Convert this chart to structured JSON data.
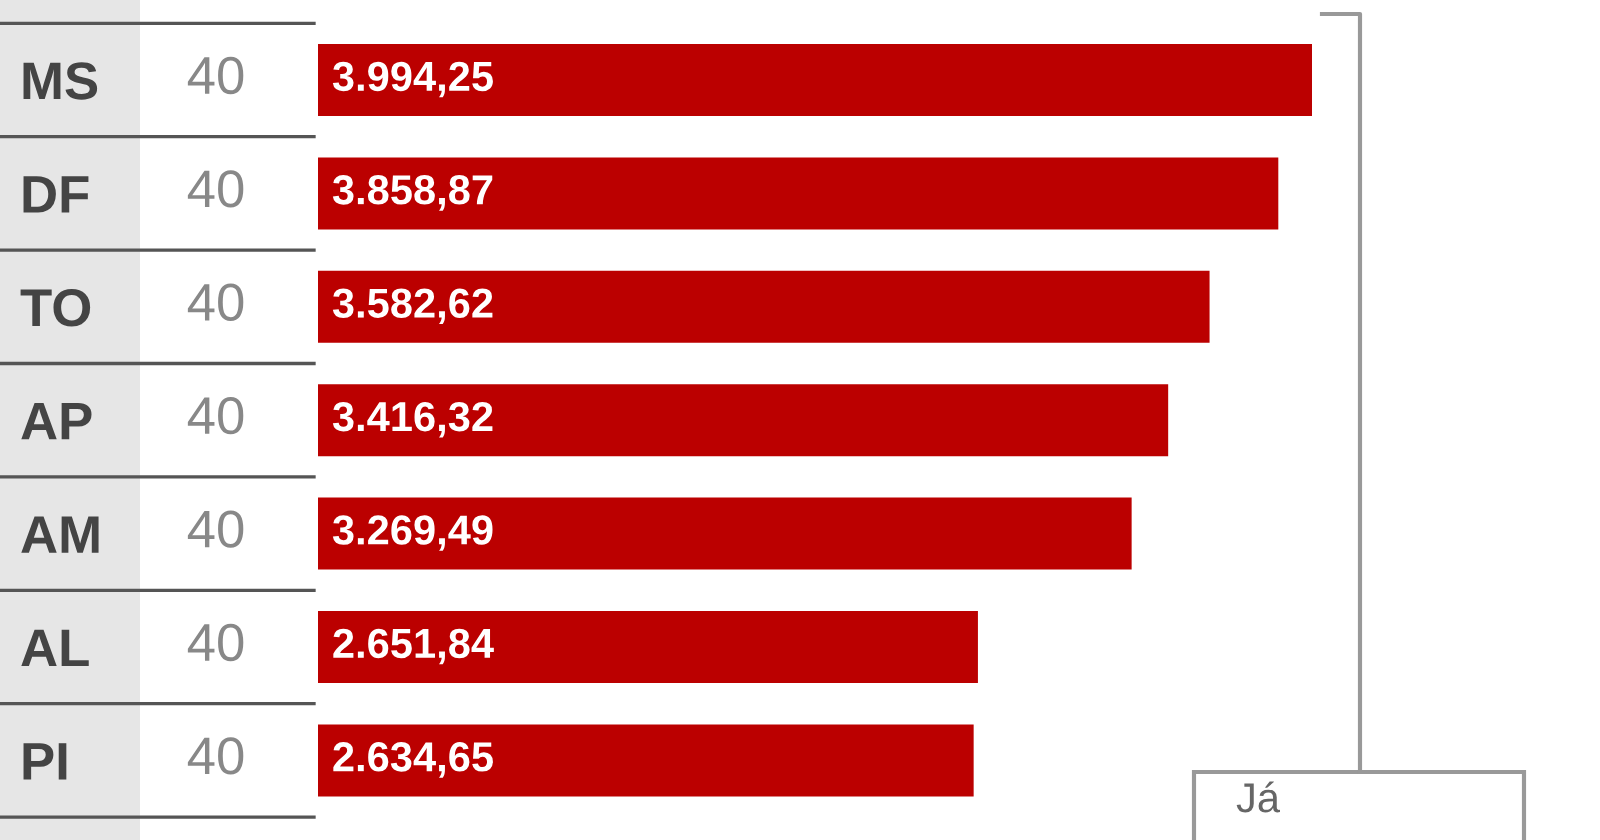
{
  "chart_data": {
    "type": "bar",
    "orientation": "horizontal",
    "categories": [
      "MS",
      "DF",
      "TO",
      "AP",
      "AM",
      "AL",
      "PI"
    ],
    "values": [
      3994.25,
      3858.87,
      3582.62,
      3416.32,
      3269.49,
      2651.84,
      2634.65
    ],
    "value_labels": [
      "3.994,25",
      "3.858,87",
      "3.582,62",
      "3.416,32",
      "3.269,49",
      "2.651,84",
      "2.634,65"
    ],
    "color": "#bb0000",
    "tick_labels": "y",
    "grid": false,
    "legend": false,
    "annotations": [
      "40",
      "40",
      "40",
      "40",
      "40",
      "40",
      "40",
      "Já"
    ]
  }
}
